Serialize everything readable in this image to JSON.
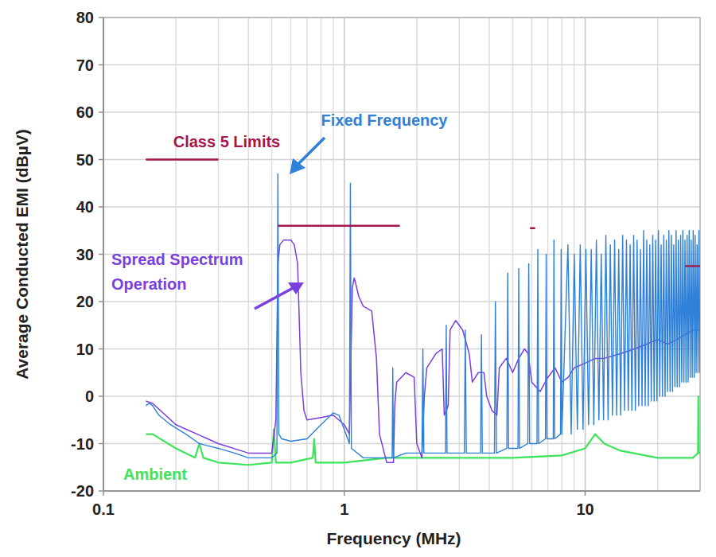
{
  "chart_data": {
    "type": "line",
    "x_label": "Frequency (MHz)",
    "y_label": "Average Conducted EMI (dBµV)",
    "log": "x",
    "grid": true,
    "xlim": [
      0.1,
      30
    ],
    "xticks": [
      0.1,
      1,
      10
    ],
    "ylim": [
      -20,
      80
    ],
    "yticks": [
      -20,
      -10,
      0,
      10,
      20,
      30,
      40,
      50,
      60,
      70,
      80
    ],
    "series": [
      {
        "name": "Ambient",
        "color": "#3ee35c",
        "line_style": "solid",
        "x": [
          0.15,
          0.16,
          0.2,
          0.24,
          0.25,
          0.26,
          0.3,
          0.4,
          0.5,
          0.51,
          0.52,
          0.6,
          0.74,
          0.75,
          0.76,
          1.0,
          1.5,
          2,
          3,
          5,
          8,
          10,
          11,
          12,
          14,
          20,
          28,
          29.4,
          29.5,
          29.6,
          30
        ],
        "values": [
          -8,
          -8,
          -11,
          -13,
          -10,
          -13,
          -14,
          -14.5,
          -14,
          -7,
          -14,
          -14,
          -13,
          -9,
          -14,
          -14,
          -13,
          -13,
          -13,
          -13,
          -12.5,
          -11,
          -8,
          -10,
          -11.5,
          -13,
          -13,
          -12,
          0,
          -12,
          -12
        ]
      },
      {
        "name": "Spread Spectrum Operation",
        "color": "#7b3fe0",
        "line_style": "solid",
        "x": [
          0.15,
          0.16,
          0.2,
          0.3,
          0.4,
          0.5,
          0.52,
          0.53,
          0.54,
          0.56,
          0.6,
          0.62,
          0.64,
          0.66,
          0.68,
          0.7,
          0.8,
          0.9,
          1.0,
          1.05,
          1.08,
          1.1,
          1.15,
          1.2,
          1.3,
          1.36,
          1.4,
          1.5,
          1.6,
          1.62,
          1.65,
          1.8,
          1.95,
          2.0,
          2.1,
          2.15,
          2.2,
          2.4,
          2.55,
          2.6,
          2.7,
          2.75,
          2.9,
          3.1,
          3.3,
          3.4,
          3.6,
          3.8,
          3.9,
          4.1,
          4.3,
          4.4,
          4.7,
          5.0,
          5.3,
          5.6,
          5.8,
          6.0,
          6.5,
          7.0,
          7.5,
          8.0,
          8.5,
          9,
          10,
          11,
          12,
          14,
          16,
          18,
          20,
          22,
          24,
          26,
          28,
          30
        ],
        "values": [
          -1,
          -1.5,
          -6,
          -10,
          -12,
          -12,
          -5,
          28,
          32,
          33,
          33,
          32,
          28,
          5,
          -3,
          -5,
          -4.5,
          -4,
          -6,
          -8,
          23,
          25,
          21,
          19,
          18,
          8,
          -8,
          -14,
          -14,
          -2,
          3,
          5,
          4,
          -10,
          -13,
          0,
          6,
          9,
          10,
          -4,
          -2,
          14,
          16,
          14,
          9,
          3,
          5,
          5,
          0,
          -3,
          -4,
          6,
          8,
          5,
          8,
          10,
          9,
          3,
          1,
          4,
          6,
          3,
          4,
          6,
          7,
          8,
          8,
          9,
          10,
          11,
          12,
          11,
          12,
          13,
          14,
          14
        ]
      },
      {
        "name": "Fixed Frequency",
        "color": "#2f80d8",
        "line_style": "solid",
        "x": [
          0.15,
          0.155,
          0.16,
          0.17,
          0.19,
          0.22,
          0.25,
          0.3,
          0.35,
          0.4,
          0.45,
          0.5,
          0.525,
          0.53,
          0.535,
          0.55,
          0.6,
          0.7,
          0.8,
          0.9,
          0.95,
          1.0,
          1.05,
          1.06,
          1.07,
          1.2,
          1.4,
          1.58,
          1.59,
          1.6,
          1.8,
          2.1,
          2.12,
          2.14,
          2.63,
          2.65,
          2.67,
          3.15,
          3.18,
          3.21,
          3.68,
          3.71,
          3.74,
          4.2,
          4.24,
          4.28,
          4.73,
          4.77,
          4.81,
          5.26,
          5.3,
          5.34,
          5.78,
          5.83,
          5.88,
          6.31,
          6.36,
          6.41,
          6.84,
          6.89,
          6.94,
          7.37,
          7.42,
          7.47,
          7.9,
          7.95,
          8.0,
          8.48,
          8.75,
          9.01,
          9.28,
          9.54,
          9.8,
          10.07,
          10.33,
          10.6,
          10.86,
          11.13,
          11.4,
          11.66,
          11.92,
          12.19,
          12.45,
          12.72,
          12.98,
          13.25,
          13.51,
          13.78,
          14.04,
          14.31,
          14.57,
          14.84,
          15.1,
          15.37,
          15.63,
          15.9,
          16.16,
          16.43,
          16.69,
          16.96,
          17.22,
          17.49,
          17.75,
          18.02,
          18.28,
          18.55,
          18.81,
          19.08,
          19.34,
          19.61,
          19.87,
          20.14,
          20.4,
          20.67,
          20.93,
          21.2,
          21.46,
          21.73,
          21.99,
          22.26,
          22.52,
          22.79,
          23.05,
          23.32,
          23.58,
          23.85,
          24.11,
          24.38,
          24.64,
          24.91,
          25.17,
          25.44,
          25.7,
          25.97,
          26.23,
          26.5,
          26.76,
          27.03,
          27.29,
          27.56,
          27.82,
          28.09,
          28.35,
          28.62,
          28.88,
          29.15,
          29.41,
          29.68,
          29.94
        ],
        "values": [
          -2,
          -1.5,
          -2,
          -4,
          -6,
          -8,
          -10,
          -11,
          -12,
          -13,
          -13,
          -13,
          -12,
          47,
          -8,
          -9,
          -9.5,
          -9,
          -6,
          -3.5,
          -4,
          -7,
          -10,
          45,
          -11,
          -13,
          -13,
          -13,
          6,
          -13,
          -12,
          -12,
          10,
          -12,
          -12,
          15,
          -12,
          -12,
          14,
          -12,
          -12,
          13,
          -12,
          -12,
          20,
          -12,
          -11,
          26,
          -11,
          -11,
          27,
          -11,
          -10,
          28,
          -10,
          -10,
          31,
          -10,
          -9,
          30,
          -9,
          -9,
          33,
          -9,
          -8,
          31,
          -8,
          32,
          -8,
          30,
          -7,
          32,
          -7,
          31,
          -6,
          31,
          -6,
          33,
          -5,
          30,
          -5,
          34,
          -5,
          32,
          -4,
          33,
          -4,
          31,
          -4,
          34,
          -3,
          33,
          -3,
          32,
          -3,
          34,
          -3,
          33,
          -2,
          31,
          -2,
          35,
          -2,
          33,
          -2,
          32,
          -1,
          34,
          -1,
          33,
          -1,
          35,
          0,
          32,
          0,
          34,
          0,
          33,
          1,
          35,
          1,
          34,
          1,
          32,
          2,
          35,
          2,
          33,
          2,
          34,
          3,
          35,
          3,
          33,
          3,
          34,
          3,
          35,
          4,
          33,
          4,
          35,
          4,
          34,
          5,
          32,
          5,
          35,
          5
        ]
      },
      {
        "name": "Class 5 Limits",
        "color": "#a3164e",
        "line_style": "solid",
        "x": [
          0.15,
          0.3,
          0.3,
          0.53,
          1.7,
          1.7,
          5.9,
          6.2,
          6.2,
          26,
          30
        ],
        "values": [
          50,
          50,
          null,
          36,
          36,
          null,
          35.5,
          35.5,
          null,
          27.5,
          27.5
        ]
      }
    ]
  }
}
